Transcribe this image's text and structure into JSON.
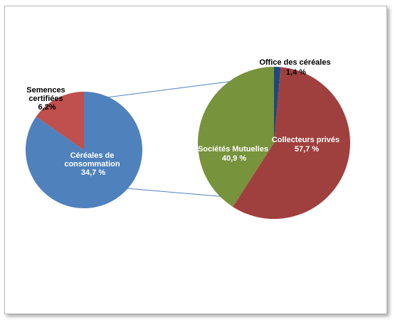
{
  "chart_data": {
    "type": "pie",
    "main_pie": {
      "slices": [
        {
          "label": "Céréales de consommation",
          "label_lines": [
            "Céréales de",
            "consommation"
          ],
          "value_text": "34,7 %",
          "share": 0.847,
          "color": "#4f81bd",
          "exploded_to": "detail"
        },
        {
          "label": "Semences certifiées",
          "label_lines": [
            "Semences",
            "certifiées"
          ],
          "value_text": "6,2%",
          "share": 0.153,
          "color": "#c0504d"
        }
      ]
    },
    "detail_pie": {
      "slices": [
        {
          "label": "Office des céréales",
          "value_text": "1,4 %",
          "value": 1.4,
          "color": "#1f497d"
        },
        {
          "label": "Collecteurs privés",
          "value_text": "57,7 %",
          "value": 57.7,
          "color": "#a0403e"
        },
        {
          "label": "Sociétés Mutuelles",
          "value_text": "40,9 %",
          "value": 40.9,
          "color": "#77933c"
        }
      ]
    },
    "legend": "none"
  }
}
